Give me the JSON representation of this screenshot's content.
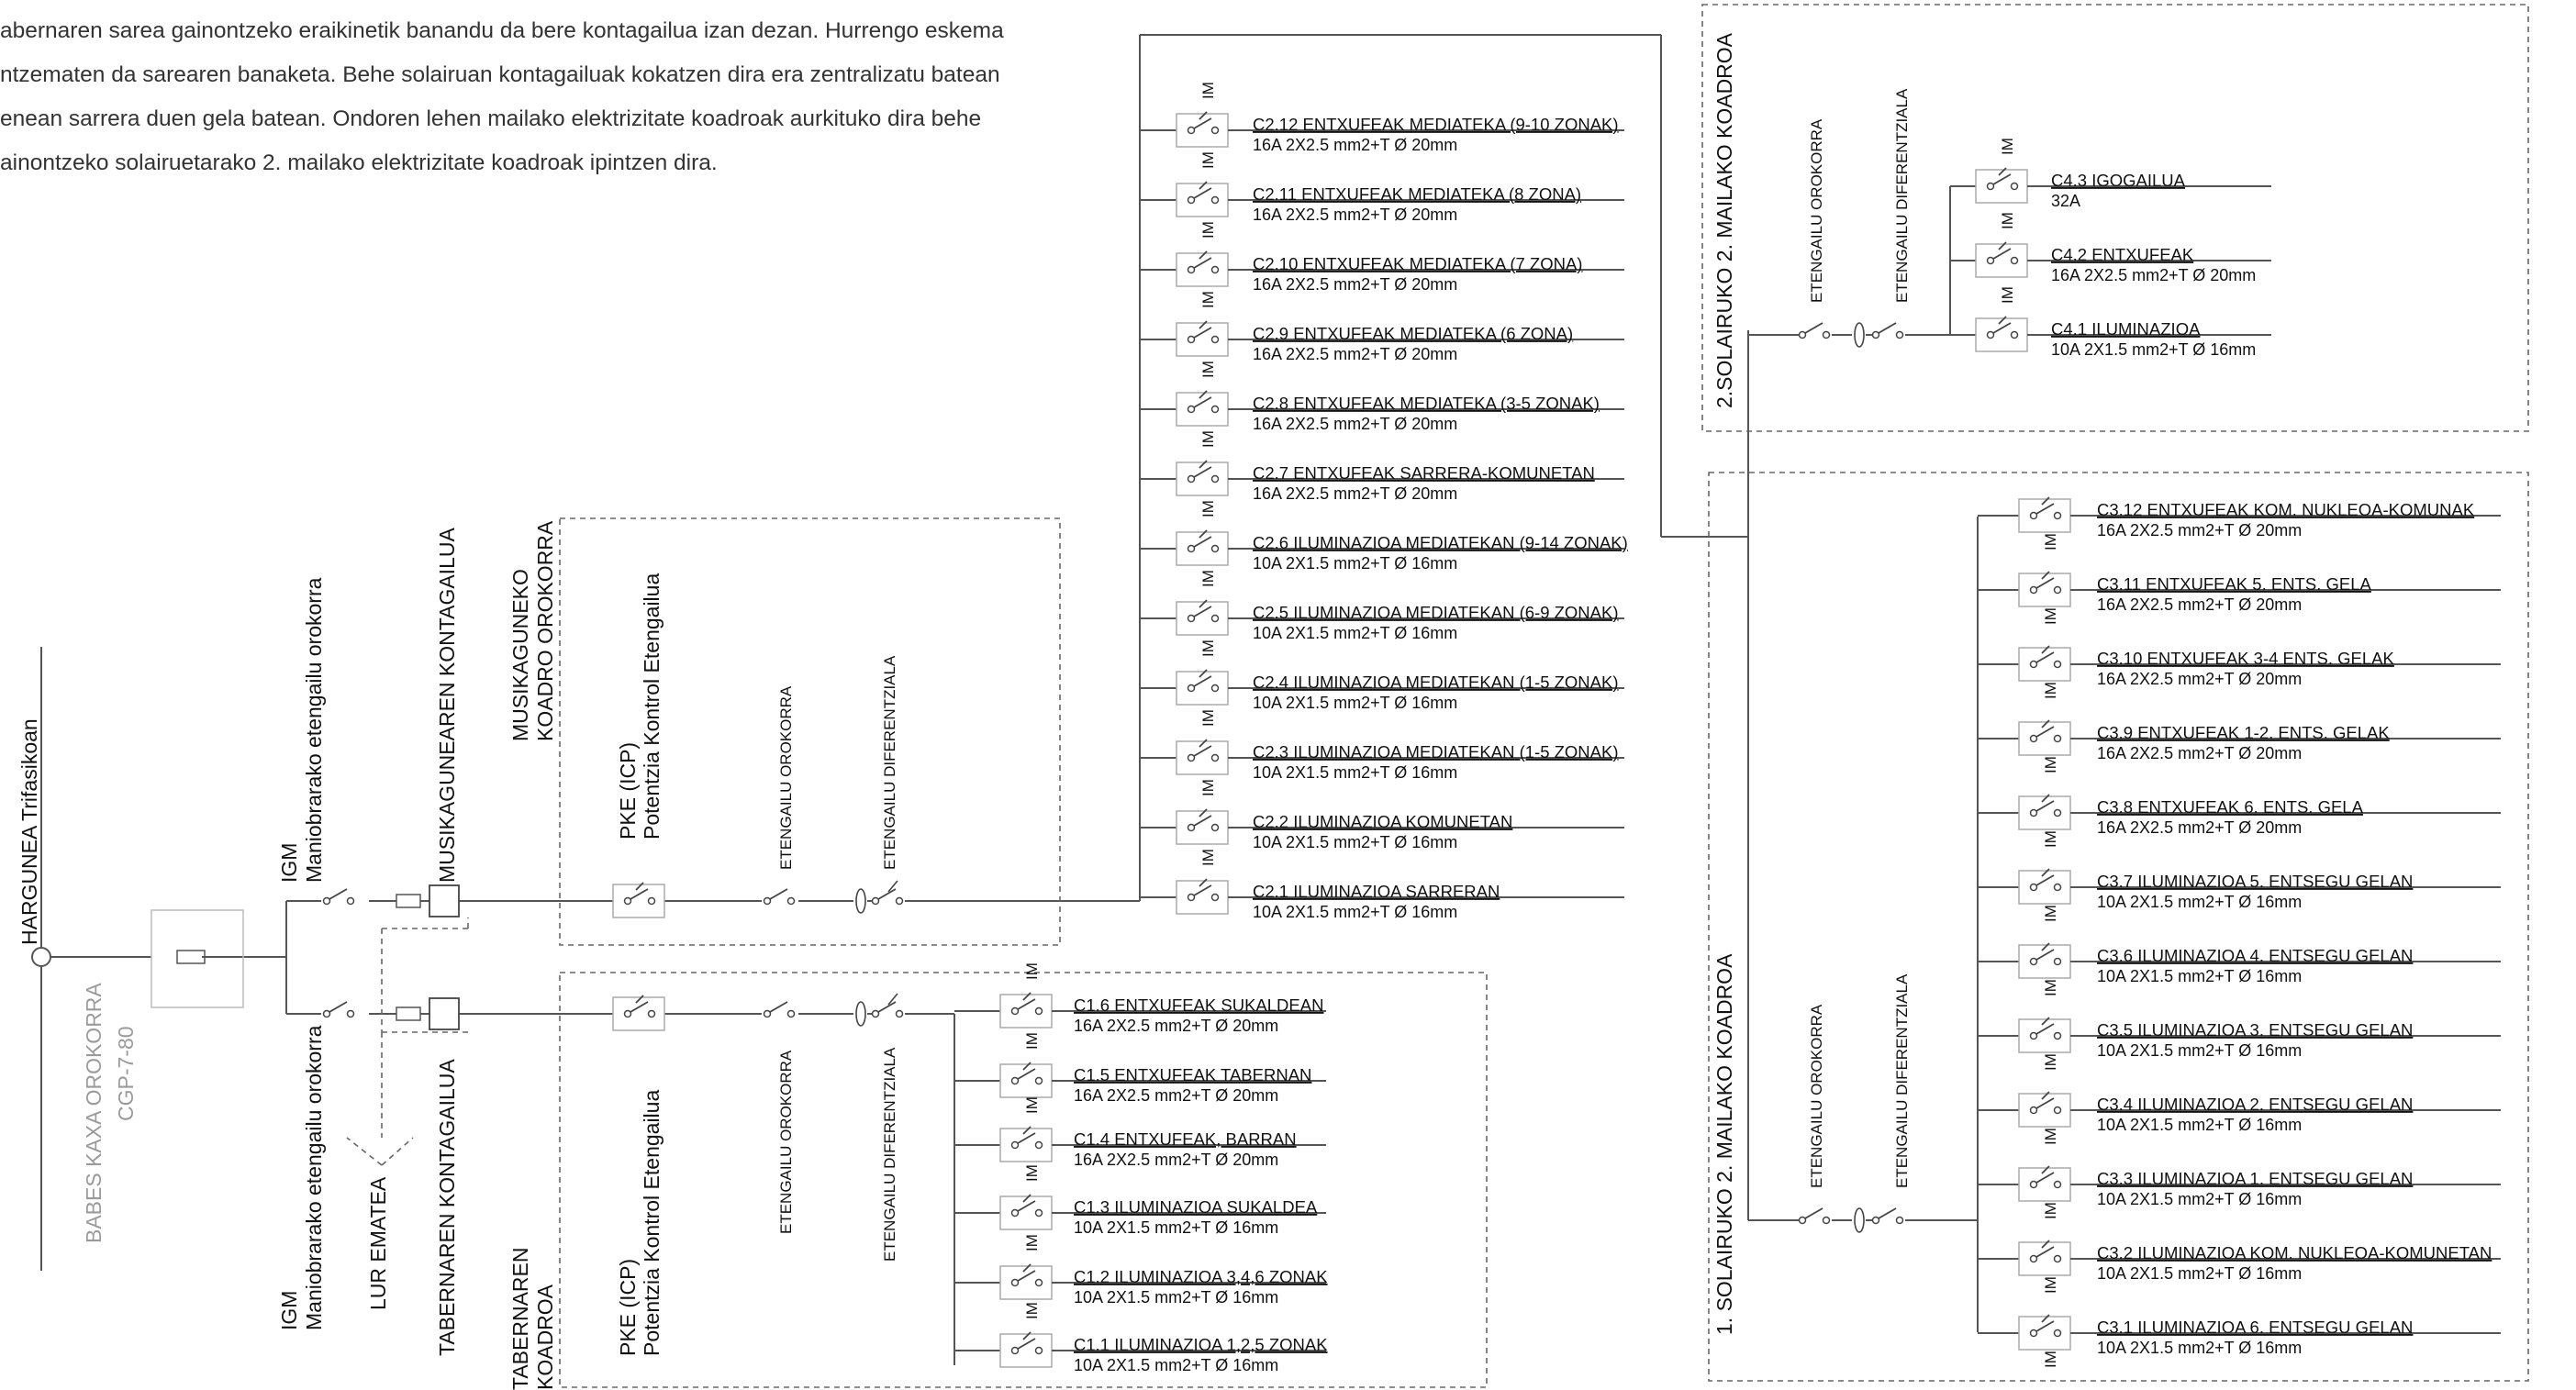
{
  "intro": {
    "lines": [
      "abernaren sarea gainontzeko eraikinetik banandu da bere kontagailua izan dezan. Hurrengo eskema",
      "ntzematen da sarearen banaketa. Behe solairuan kontagailuak kokatzen dira era zentralizatu batean",
      "enean sarrera duen gela batean. Ondoren lehen mailako elektrizitate koadroak aurkituko dira behe",
      "ainontzeko solairuetarako 2. mailako elektrizitate koadroak ipintzen dira."
    ]
  },
  "labels": {
    "harguena": "HARGUNEA Trifasikoan",
    "babes_1": "BABES KAXA OROKORRA",
    "babes_2": "CGP-7-80",
    "igm": "IGM",
    "maniobra": "Maniobrarako etengailu orokorra",
    "lur": "LUR EMATEA",
    "musika_kontagailua": "MUSIKAGUNEAREN KONTAGAILUA",
    "tabernaren_kontagailua": "TABERNAREN KONTAGAILUA",
    "musika_koadro_1": "MUSIKAGUNEKO",
    "musika_koadro_2": "KOADRO OROKORRA",
    "taberna_koadro_1": "TABERNAREN",
    "taberna_koadro_2": "KOADROA",
    "pke": "PKE (ICP)",
    "potentzia": "Potentzia Kontrol Etengailua",
    "etengailu_orokorra": "ETENGAILU OROKORRA",
    "etengailu_diferentziala": "ETENGAILU DIFERENTZIALA",
    "im": "IM",
    "solairua2": "2.SOLAIRUKO 2. MAILAKO KOADROA",
    "solairua1": "1. SOLAIRUKO 2. MAILAKO KOADROA"
  },
  "circuits": {
    "c2": [
      {
        "title": "C2.12 ENTXUFEAK MEDIATEKA (9-10 ZONAK)",
        "spec": "16A 2X2.5 mm2+T   Ø 20mm"
      },
      {
        "title": "C2.11 ENTXUFEAK MEDIATEKA (8 ZONA)",
        "spec": "16A 2X2.5 mm2+T   Ø 20mm"
      },
      {
        "title": "C2.10 ENTXUFEAK MEDIATEKA (7 ZONA)",
        "spec": "16A 2X2.5 mm2+T   Ø 20mm"
      },
      {
        "title": "C2.9 ENTXUFEAK MEDIATEKA (6 ZONA)",
        "spec": "16A 2X2.5 mm2+T   Ø 20mm"
      },
      {
        "title": "C2.8 ENTXUFEAK MEDIATEKA (3-5 ZONAK)",
        "spec": "16A 2X2.5 mm2+T   Ø 20mm"
      },
      {
        "title": "C2.7 ENTXUFEAK SARRERA-KOMUNETAN",
        "spec": "16A 2X2.5 mm2+T   Ø 20mm"
      },
      {
        "title": "C2.6 ILUMINAZIOA MEDIATEKAN (9-14 ZONAK)",
        "spec": "10A 2X1.5 mm2+T   Ø 16mm"
      },
      {
        "title": "C2.5 ILUMINAZIOA MEDIATEKAN (6-9 ZONAK)",
        "spec": "10A 2X1.5 mm2+T   Ø 16mm"
      },
      {
        "title": "C2.4 ILUMINAZIOA MEDIATEKAN (1-5 ZONAK)",
        "spec": "10A 2X1.5 mm2+T   Ø 16mm"
      },
      {
        "title": "C2.3 ILUMINAZIOA MEDIATEKAN (1-5 ZONAK)",
        "spec": "10A 2X1.5 mm2+T   Ø 16mm"
      },
      {
        "title": "C2.2 ILUMINAZIOA KOMUNETAN",
        "spec": "10A 2X1.5 mm2+T   Ø 16mm"
      },
      {
        "title": "C2.1 ILUMINAZIOA SARRERAN",
        "spec": "10A 2X1.5 mm2+T   Ø 16mm"
      }
    ],
    "c1": [
      {
        "title": "C1.6 ENTXUFEAK SUKALDEAN",
        "spec": "16A 2X2.5 mm2+T   Ø 20mm"
      },
      {
        "title": "C1.5 ENTXUFEAK TABERNAN",
        "spec": "16A 2X2.5 mm2+T   Ø 20mm"
      },
      {
        "title": "C1.4 ENTXUFEAK, BARRAN",
        "spec": "16A 2X2.5 mm2+T   Ø 20mm"
      },
      {
        "title": "C1.3 ILUMINAZIOA SUKALDEA",
        "spec": "10A 2X1.5 mm2+T   Ø 16mm"
      },
      {
        "title": "C1.2 ILUMINAZIOA 3,4,6 ZONAK",
        "spec": "10A 2X1.5 mm2+T   Ø 16mm"
      },
      {
        "title": "C1.1 ILUMINAZIOA 1,2,5 ZONAK",
        "spec": "10A 2X1.5 mm2+T   Ø 16mm"
      }
    ],
    "c4": [
      {
        "title": "C4.3 IGOGAILUA",
        "spec": "32A"
      },
      {
        "title": "C4.2 ENTXUFEAK",
        "spec": "16A 2X2.5 mm2+T   Ø 20mm"
      },
      {
        "title": "C4.1 ILUMINAZIOA",
        "spec": "10A 2X1.5 mm2+T   Ø 16mm"
      }
    ],
    "c3": [
      {
        "title": "C3.12 ENTXUFEAK KOM. NUKLEOA-KOMUNAK",
        "spec": "16A 2X2.5 mm2+T   Ø 20mm"
      },
      {
        "title": "C3.11 ENTXUFEAK 5. ENTS. GELA",
        "spec": "16A 2X2.5 mm2+T   Ø 20mm"
      },
      {
        "title": "C3.10 ENTXUFEAK 3-4 ENTS. GELAK",
        "spec": "16A 2X2.5 mm2+T   Ø 20mm"
      },
      {
        "title": "C3.9 ENTXUFEAK 1-2. ENTS. GELAK",
        "spec": "16A 2X2.5 mm2+T   Ø 20mm"
      },
      {
        "title": "C3.8 ENTXUFEAK 6. ENTS. GELA",
        "spec": "16A 2X2.5 mm2+T   Ø 20mm"
      },
      {
        "title": "C3.7 ILUMINAZIOA 5. ENTSEGU GELAN",
        "spec": "10A 2X1.5 mm2+T   Ø 16mm"
      },
      {
        "title": "C3.6 ILUMINAZIOA 4. ENTSEGU GELAN",
        "spec": "10A 2X1.5 mm2+T   Ø 16mm"
      },
      {
        "title": "C3.5 ILUMINAZIOA 3. ENTSEGU GELAN",
        "spec": "10A 2X1.5 mm2+T   Ø 16mm"
      },
      {
        "title": "C3.4 ILUMINAZIOA 2. ENTSEGU GELAN",
        "spec": "10A 2X1.5 mm2+T   Ø 16mm"
      },
      {
        "title": "C3.3 ILUMINAZIOA 1. ENTSEGU GELAN",
        "spec": "10A 2X1.5 mm2+T   Ø 16mm"
      },
      {
        "title": "C3.2 ILUMINAZIOA KOM. NUKLEOA-KOMUNETAN",
        "spec": "10A 2X1.5 mm2+T   Ø 16mm"
      },
      {
        "title": "C3.1 ILUMINAZIOA 6. ENTSEGU GELAN",
        "spec": "10A 2X1.5 mm2+T   Ø 16mm"
      }
    ]
  },
  "colors": {
    "line": "#555555",
    "grey_text": "#9a9a9a",
    "box": "#b8b8b8"
  }
}
